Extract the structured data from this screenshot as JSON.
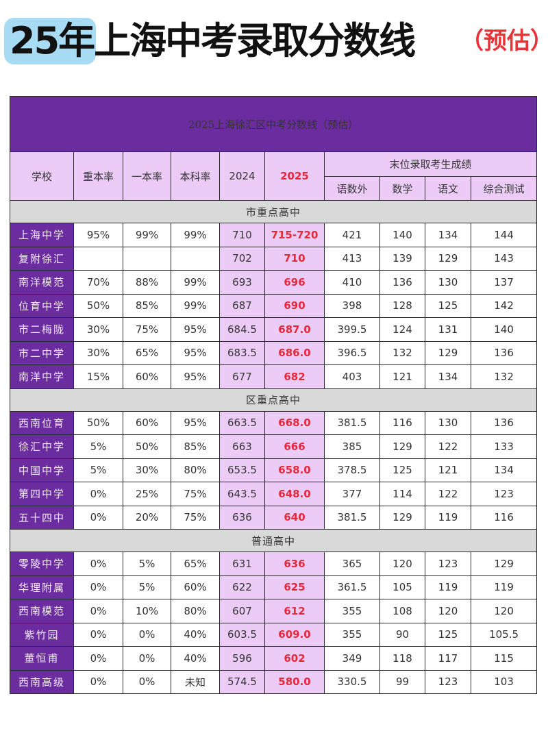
{
  "headline": {
    "badge_text": "25年",
    "main_text": "上海中考录取分数线",
    "suffix": "（预估）",
    "badge_color": "#a8dcf5",
    "suffix_color": "#e8333a"
  },
  "table": {
    "title": "2025上海徐汇区中考分数线（预估）",
    "headers": {
      "school": "学校",
      "key_rate": "重本率",
      "tier1_rate": "一本率",
      "bachelor_rate": "本科率",
      "y2024": "2024",
      "y2025": "2025",
      "last_admitted_group": "末位录取考生成绩",
      "chn_math_eng": "语数外",
      "math": "数学",
      "chinese": "语文",
      "comprehensive": "综合测试"
    },
    "sections": [
      {
        "name": "市重点高中",
        "rows": [
          {
            "school": "上海中学",
            "key": "95%",
            "tier1": "99%",
            "bachelor": "99%",
            "y2024": "710",
            "y2025": "715-720",
            "cme": "421",
            "math": "140",
            "chinese": "134",
            "comp": "144"
          },
          {
            "school": "复附徐汇",
            "key": "",
            "tier1": "",
            "bachelor": "",
            "y2024": "702",
            "y2025": "710",
            "cme": "413",
            "math": "139",
            "chinese": "129",
            "comp": "143"
          },
          {
            "school": "南洋模范",
            "key": "70%",
            "tier1": "88%",
            "bachelor": "99%",
            "y2024": "693",
            "y2025": "696",
            "cme": "410",
            "math": "136",
            "chinese": "130",
            "comp": "137"
          },
          {
            "school": "位育中学",
            "key": "50%",
            "tier1": "85%",
            "bachelor": "99%",
            "y2024": "687",
            "y2025": "690",
            "cme": "398",
            "math": "128",
            "chinese": "125",
            "comp": "142"
          },
          {
            "school": "市二梅陇",
            "key": "30%",
            "tier1": "75%",
            "bachelor": "95%",
            "y2024": "684.5",
            "y2025": "687.0",
            "cme": "399.5",
            "math": "124",
            "chinese": "131",
            "comp": "140"
          },
          {
            "school": "市二中学",
            "key": "30%",
            "tier1": "65%",
            "bachelor": "95%",
            "y2024": "683.5",
            "y2025": "686.0",
            "cme": "396.5",
            "math": "132",
            "chinese": "129",
            "comp": "136"
          },
          {
            "school": "南洋中学",
            "key": "15%",
            "tier1": "60%",
            "bachelor": "95%",
            "y2024": "677",
            "y2025": "682",
            "cme": "403",
            "math": "121",
            "chinese": "134",
            "comp": "132"
          }
        ]
      },
      {
        "name": "区重点高中",
        "rows": [
          {
            "school": "西南位育",
            "key": "50%",
            "tier1": "60%",
            "bachelor": "95%",
            "y2024": "663.5",
            "y2025": "668.0",
            "cme": "381.5",
            "math": "116",
            "chinese": "130",
            "comp": "136"
          },
          {
            "school": "徐汇中学",
            "key": "5%",
            "tier1": "50%",
            "bachelor": "85%",
            "y2024": "663",
            "y2025": "666",
            "cme": "385",
            "math": "129",
            "chinese": "122",
            "comp": "133"
          },
          {
            "school": "中国中学",
            "key": "5%",
            "tier1": "30%",
            "bachelor": "80%",
            "y2024": "653.5",
            "y2025": "658.0",
            "cme": "378.5",
            "math": "125",
            "chinese": "121",
            "comp": "134"
          },
          {
            "school": "第四中学",
            "key": "0%",
            "tier1": "25%",
            "bachelor": "75%",
            "y2024": "643.5",
            "y2025": "648.0",
            "cme": "377",
            "math": "114",
            "chinese": "122",
            "comp": "123"
          },
          {
            "school": "五十四中",
            "key": "0%",
            "tier1": "20%",
            "bachelor": "75%",
            "y2024": "636",
            "y2025": "640",
            "cme": "381.5",
            "math": "129",
            "chinese": "119",
            "comp": "116"
          }
        ]
      },
      {
        "name": "普通高中",
        "rows": [
          {
            "school": "零陵中学",
            "key": "0%",
            "tier1": "5%",
            "bachelor": "65%",
            "y2024": "631",
            "y2025": "636",
            "cme": "365",
            "math": "120",
            "chinese": "123",
            "comp": "129"
          },
          {
            "school": "华理附属",
            "key": "0%",
            "tier1": "5%",
            "bachelor": "60%",
            "y2024": "622",
            "y2025": "625",
            "cme": "361.5",
            "math": "105",
            "chinese": "119",
            "comp": "119"
          },
          {
            "school": "西南模范",
            "key": "0%",
            "tier1": "10%",
            "bachelor": "80%",
            "y2024": "607",
            "y2025": "612",
            "cme": "355",
            "math": "108",
            "chinese": "120",
            "comp": "120"
          },
          {
            "school": "紫竹园",
            "key": "0%",
            "tier1": "0%",
            "bachelor": "40%",
            "y2024": "603.5",
            "y2025": "609.0",
            "cme": "355",
            "math": "90",
            "chinese": "125",
            "comp": "105.5"
          },
          {
            "school": "董恒甫",
            "key": "0%",
            "tier1": "0%",
            "bachelor": "40%",
            "y2024": "596",
            "y2025": "602",
            "cme": "349",
            "math": "118",
            "chinese": "117",
            "comp": "115"
          },
          {
            "school": "西南高级",
            "key": "0%",
            "tier1": "0%",
            "bachelor": "未知",
            "y2024": "574.5",
            "y2025": "580.0",
            "cme": "330.5",
            "math": "99",
            "chinese": "123",
            "comp": "103"
          }
        ]
      }
    ],
    "colors": {
      "title_bg": "#6b2ca0",
      "header_bg": "#ecccf7",
      "section_bg": "#d9d9d9",
      "highlight_text": "#e5283a"
    }
  }
}
